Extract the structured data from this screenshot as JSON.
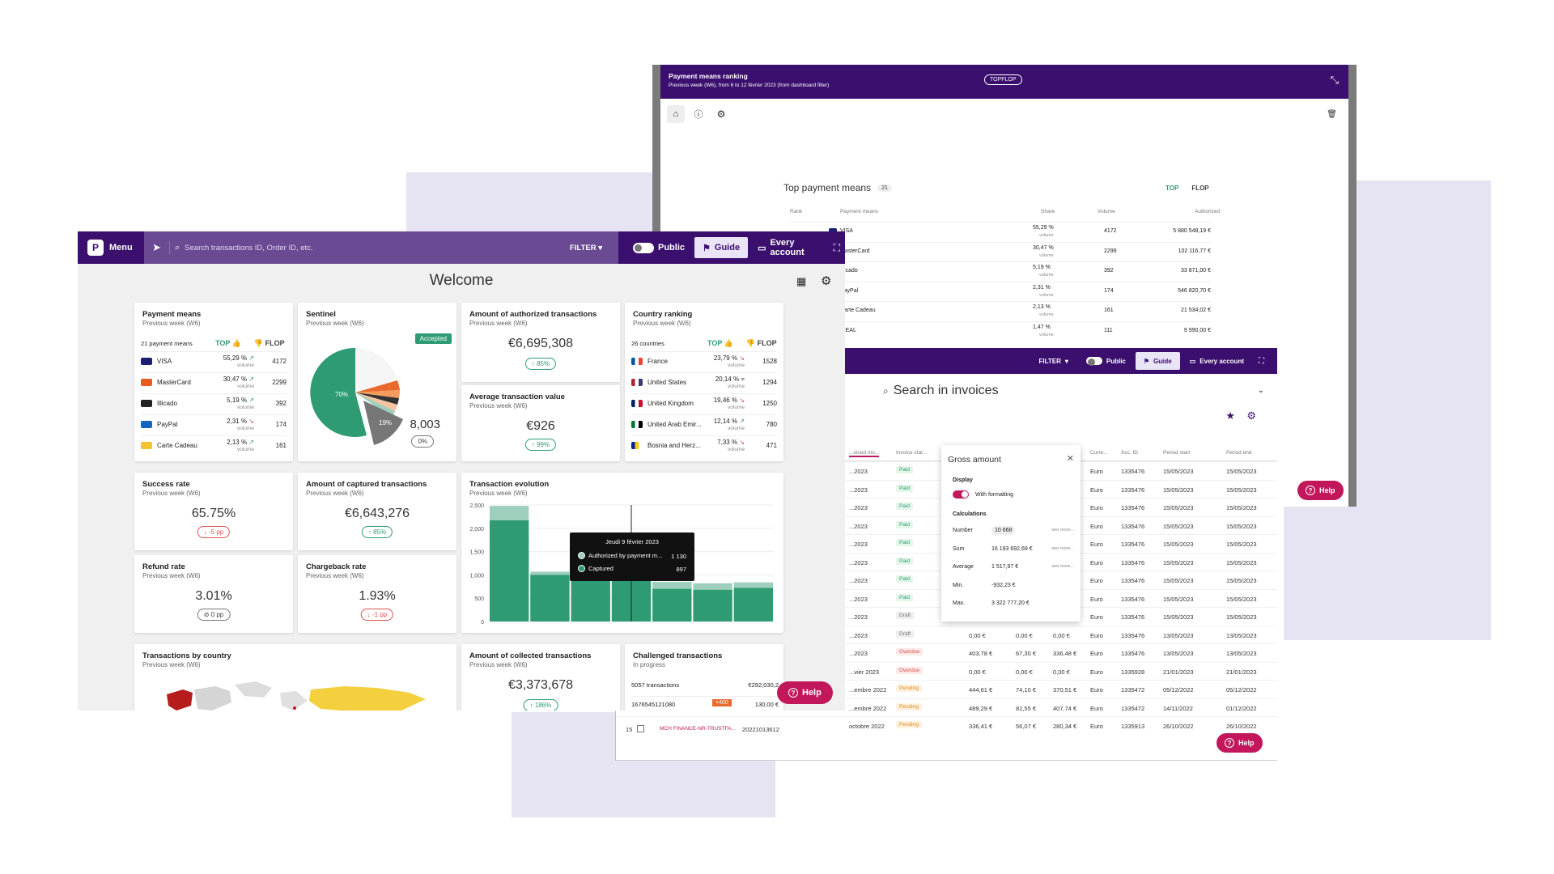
{
  "colors": {
    "brand": "#3b0f6e",
    "accent": "#2e9b73",
    "help": "#c2185b",
    "negative": "#d9534f"
  },
  "dashboard": {
    "header": {
      "menu_label": "Menu",
      "search_placeholder": "Search transactions ID, Order ID, etc.",
      "filter_label": "FILTER",
      "public_label": "Public",
      "guide_label": "Guide",
      "account_label": "Every account"
    },
    "page_title": "Welcome",
    "payment_means": {
      "title": "Payment means",
      "subtitle": "Previous week (W6)",
      "count_label": "21 payment means",
      "top_label": "TOP",
      "flop_label": "FLOP",
      "rows": [
        {
          "name": "VISA",
          "share": "55,29 %",
          "trend": "up",
          "volume_label": "volume",
          "volume": "4172",
          "color": "#1a1f71"
        },
        {
          "name": "MasterCard",
          "share": "30,47 %",
          "trend": "up",
          "volume_label": "volume",
          "volume": "2299",
          "color": "#eb5a1e"
        },
        {
          "name": "Illicado",
          "share": "5,19 %",
          "trend": "up",
          "volume_label": "volume",
          "volume": "392",
          "color": "#222222"
        },
        {
          "name": "PayPal",
          "share": "2,31 %",
          "trend": "down",
          "volume_label": "volume",
          "volume": "174",
          "color": "#1565c0"
        },
        {
          "name": "Carte Cadeau",
          "share": "2,13 %",
          "trend": "up",
          "volume_label": "volume",
          "volume": "161",
          "color": "#f4c430"
        }
      ]
    },
    "sentinel": {
      "title": "Sentinel",
      "subtitle": "Previous week (W6)",
      "badge": "Accepted",
      "value": "8,003",
      "change": "0%",
      "slice_a": "70%",
      "slice_b": "19%"
    },
    "authorized": {
      "title": "Amount of authorized transactions",
      "subtitle": "Previous week (W6)",
      "value": "€6,695,308",
      "change": "85%"
    },
    "avg_value": {
      "title": "Average transaction value",
      "subtitle": "Previous week (W6)",
      "value": "€926",
      "change": "99%"
    },
    "country_ranking": {
      "title": "Country ranking",
      "subtitle": "Previous week (W6)",
      "count_label": "26 countries",
      "top_label": "TOP",
      "flop_label": "FLOP",
      "rows": [
        {
          "name": "France",
          "share": "23,79 %",
          "trend": "down",
          "volume_label": "volume",
          "volume": "1528"
        },
        {
          "name": "United States",
          "share": "20,14 %",
          "trend": "equal",
          "volume_label": "volume",
          "volume": "1294"
        },
        {
          "name": "United Kingdom",
          "share": "19,46 %",
          "trend": "down",
          "volume_label": "volume",
          "volume": "1250"
        },
        {
          "name": "United Arab Emir...",
          "share": "12,14 %",
          "trend": "up",
          "volume_label": "volume",
          "volume": "780"
        },
        {
          "name": "Bosnia and Herz...",
          "share": "7,33 %",
          "trend": "down",
          "volume_label": "volume",
          "volume": "471"
        }
      ]
    },
    "success_rate": {
      "title": "Success rate",
      "subtitle": "Previous week (W6)",
      "value": "65.75%",
      "change": "-5 pp"
    },
    "captured": {
      "title": "Amount of captured transactions",
      "subtitle": "Previous week (W6)",
      "value": "€6,643,276",
      "change": "85%"
    },
    "refund_rate": {
      "title": "Refund rate",
      "subtitle": "Previous week (W6)",
      "value": "3.01%",
      "change": "0 pp"
    },
    "chargeback_rate": {
      "title": "Chargeback rate",
      "subtitle": "Previous week (W6)",
      "value": "1.93%",
      "change": "-1 pp"
    },
    "evolution": {
      "title": "Transaction evolution",
      "subtitle": "Previous week (W6)",
      "tooltip_date": "Jeudi 9 février 2023",
      "tooltip_auth_label": "Authorized by payment m...",
      "tooltip_auth_value": "1 130",
      "tooltip_cap_label": "Captured",
      "tooltip_cap_value": "897"
    },
    "by_country": {
      "title": "Transactions by country",
      "subtitle": "Previous week (W6)"
    },
    "collected": {
      "title": "Amount of collected transactions",
      "subtitle": "Previous week (W6)",
      "value": "€3,373,678",
      "change": "186%"
    },
    "challenged": {
      "title": "Challenged transactions",
      "subtitle": "In progress",
      "count": "5057 transactions",
      "amount": "€292,030,2",
      "row_id": "1676545121080",
      "row_badge": "+400",
      "row_amount": "130,00 €"
    },
    "help_label": "Help"
  },
  "chart_data": {
    "type": "bar",
    "title": "Transaction evolution",
    "yticks": [
      "2,500",
      "2,000",
      "1,500",
      "1,000",
      "500",
      "0"
    ],
    "ylim": [
      0,
      2500
    ],
    "series": [
      {
        "name": "Captured",
        "values": [
          2170,
          1000,
          970,
          1000,
          700,
          680,
          720
        ]
      },
      {
        "name": "Authorized by payment m...",
        "values": [
          2480,
          1070,
          1100,
          1130,
          850,
          820,
          840
        ]
      }
    ]
  },
  "ranking_window": {
    "title": "Payment means ranking",
    "subtitle": "Previous week (W6), from 6 to 12 février 2023 (from dashboard filter)",
    "badge": "TOPFLOP",
    "panel_title": "Top payment means",
    "panel_count": "21",
    "top_label": "TOP",
    "flop_label": "FLOP",
    "columns": [
      "Rank",
      "Payment means",
      "Share",
      "Volume",
      "Authorized"
    ],
    "rows": [
      {
        "name": "VISA",
        "share": "55,29 %",
        "volume_label": "volume",
        "volume": "4172",
        "authorized": "5 880 548,19 €"
      },
      {
        "name": "MasterCard",
        "share": "30,47 %",
        "volume_label": "volume",
        "volume": "2299",
        "authorized": "102 116,77 €"
      },
      {
        "name": "Illicado",
        "share": "5,19 %",
        "volume_label": "volume",
        "volume": "392",
        "authorized": "33 871,00 €"
      },
      {
        "name": "PayPal",
        "share": "2,31 %",
        "volume_label": "volume",
        "volume": "174",
        "authorized": "546 820,70 €"
      },
      {
        "name": "Carte Cadeau",
        "share": "2,13 %",
        "volume_label": "volume",
        "volume": "161",
        "authorized": "21 534,02 €"
      },
      {
        "name": "iDEAL",
        "share": "1,47 %",
        "volume_label": "volume",
        "volume": "111",
        "authorized": "9 990,00 €"
      }
    ],
    "help_label": "Help"
  },
  "invoices_window": {
    "filter_label": "FILTER",
    "public_label": "Public",
    "guide_label": "Guide",
    "account_label": "Every account",
    "search_title": "Search in invoices",
    "columns": [
      "...oiced mo...",
      "Invoice stat...",
      "Curre...",
      "Acc. ID",
      "Period start",
      "Period end"
    ],
    "rows": [
      {
        "date": "...2023",
        "status": "Paid",
        "a": "",
        "b": "",
        "c": "",
        "cur": "Euro",
        "acc": "1335476",
        "start": "15/05/2023",
        "end": "15/05/2023"
      },
      {
        "date": "...2023",
        "status": "Paid",
        "a": "",
        "b": "",
        "c": "",
        "cur": "Euro",
        "acc": "1335476",
        "start": "15/05/2023",
        "end": "15/05/2023"
      },
      {
        "date": "...2023",
        "status": "Paid",
        "a": "",
        "b": "",
        "c": "",
        "cur": "Euro",
        "acc": "1335476",
        "start": "15/05/2023",
        "end": "15/05/2023"
      },
      {
        "date": "...2023",
        "status": "Paid",
        "a": "",
        "b": "",
        "c": "",
        "cur": "Euro",
        "acc": "1335476",
        "start": "15/05/2023",
        "end": "15/05/2023"
      },
      {
        "date": "...2023",
        "status": "Paid",
        "a": "",
        "b": "",
        "c": "",
        "cur": "Euro",
        "acc": "1335476",
        "start": "15/05/2023",
        "end": "15/05/2023"
      },
      {
        "date": "...2023",
        "status": "Paid",
        "a": "",
        "b": "",
        "c": "",
        "cur": "Euro",
        "acc": "1335476",
        "start": "15/05/2023",
        "end": "15/05/2023"
      },
      {
        "date": "...2023",
        "status": "Paid",
        "a": "",
        "b": "",
        "c": "",
        "cur": "Euro",
        "acc": "1335476",
        "start": "15/05/2023",
        "end": "15/05/2023"
      },
      {
        "date": "...2023",
        "status": "Paid",
        "a": "",
        "b": "",
        "c": "",
        "cur": "Euro",
        "acc": "1335476",
        "start": "15/05/2023",
        "end": "15/05/2023"
      },
      {
        "date": "...2023",
        "status": "Draft",
        "a": "",
        "b": "",
        "c": "",
        "cur": "Euro",
        "acc": "1335476",
        "start": "15/05/2023",
        "end": "15/05/2023"
      },
      {
        "date": "...2023",
        "status": "Draft",
        "a": "0,00 €",
        "b": "0,00 €",
        "c": "0,00 €",
        "cur": "Euro",
        "acc": "1335476",
        "start": "13/05/2023",
        "end": "13/05/2023"
      },
      {
        "date": "...2023",
        "status": "Overdue",
        "a": "403,78 €",
        "b": "67,30 €",
        "c": "336,48 €",
        "cur": "Euro",
        "acc": "1335476",
        "start": "13/05/2023",
        "end": "13/05/2023"
      },
      {
        "date": "...vier 2023",
        "status": "Overdue",
        "a": "0,00 €",
        "b": "0,00 €",
        "c": "0,00 €",
        "cur": "Euro",
        "acc": "1335928",
        "start": "21/01/2023",
        "end": "21/01/2023"
      },
      {
        "date": "...embre 2022",
        "status": "Pending",
        "a": "444,61 €",
        "b": "74,10 €",
        "c": "370,51 €",
        "cur": "Euro",
        "acc": "1335472",
        "start": "05/12/2022",
        "end": "05/12/2022"
      },
      {
        "date": "...embre 2022",
        "status": "Pending",
        "a": "489,29 €",
        "b": "81,55 €",
        "c": "407,74 €",
        "cur": "Euro",
        "acc": "1335472",
        "start": "14/11/2022",
        "end": "01/12/2022"
      },
      {
        "date": "octobre 2022",
        "status": "Pending",
        "a": "336,41 €",
        "b": "56,07 €",
        "c": "280,34 €",
        "cur": "Euro",
        "acc": "1335913",
        "start": "26/10/2022",
        "end": "26/10/2022"
      }
    ],
    "last_row": {
      "num": "15",
      "name": "MCH FINANCE-NR-TRUSTFA...",
      "ref": "20221013612"
    },
    "popup": {
      "title": "Gross amount",
      "display_label": "Display",
      "formatting_label": "With formatting",
      "calculations_label": "Calculations",
      "see_more": "see more...",
      "stats": [
        {
          "label": "Number",
          "value": "10 668"
        },
        {
          "label": "Sum",
          "value": "16 193 692,69 €"
        },
        {
          "label": "Average",
          "value": "1 517,97 €"
        },
        {
          "label": "Min.",
          "value": "-932,23 €"
        },
        {
          "label": "Max.",
          "value": "3 322 777,20 €"
        }
      ]
    },
    "help_label": "Help"
  }
}
